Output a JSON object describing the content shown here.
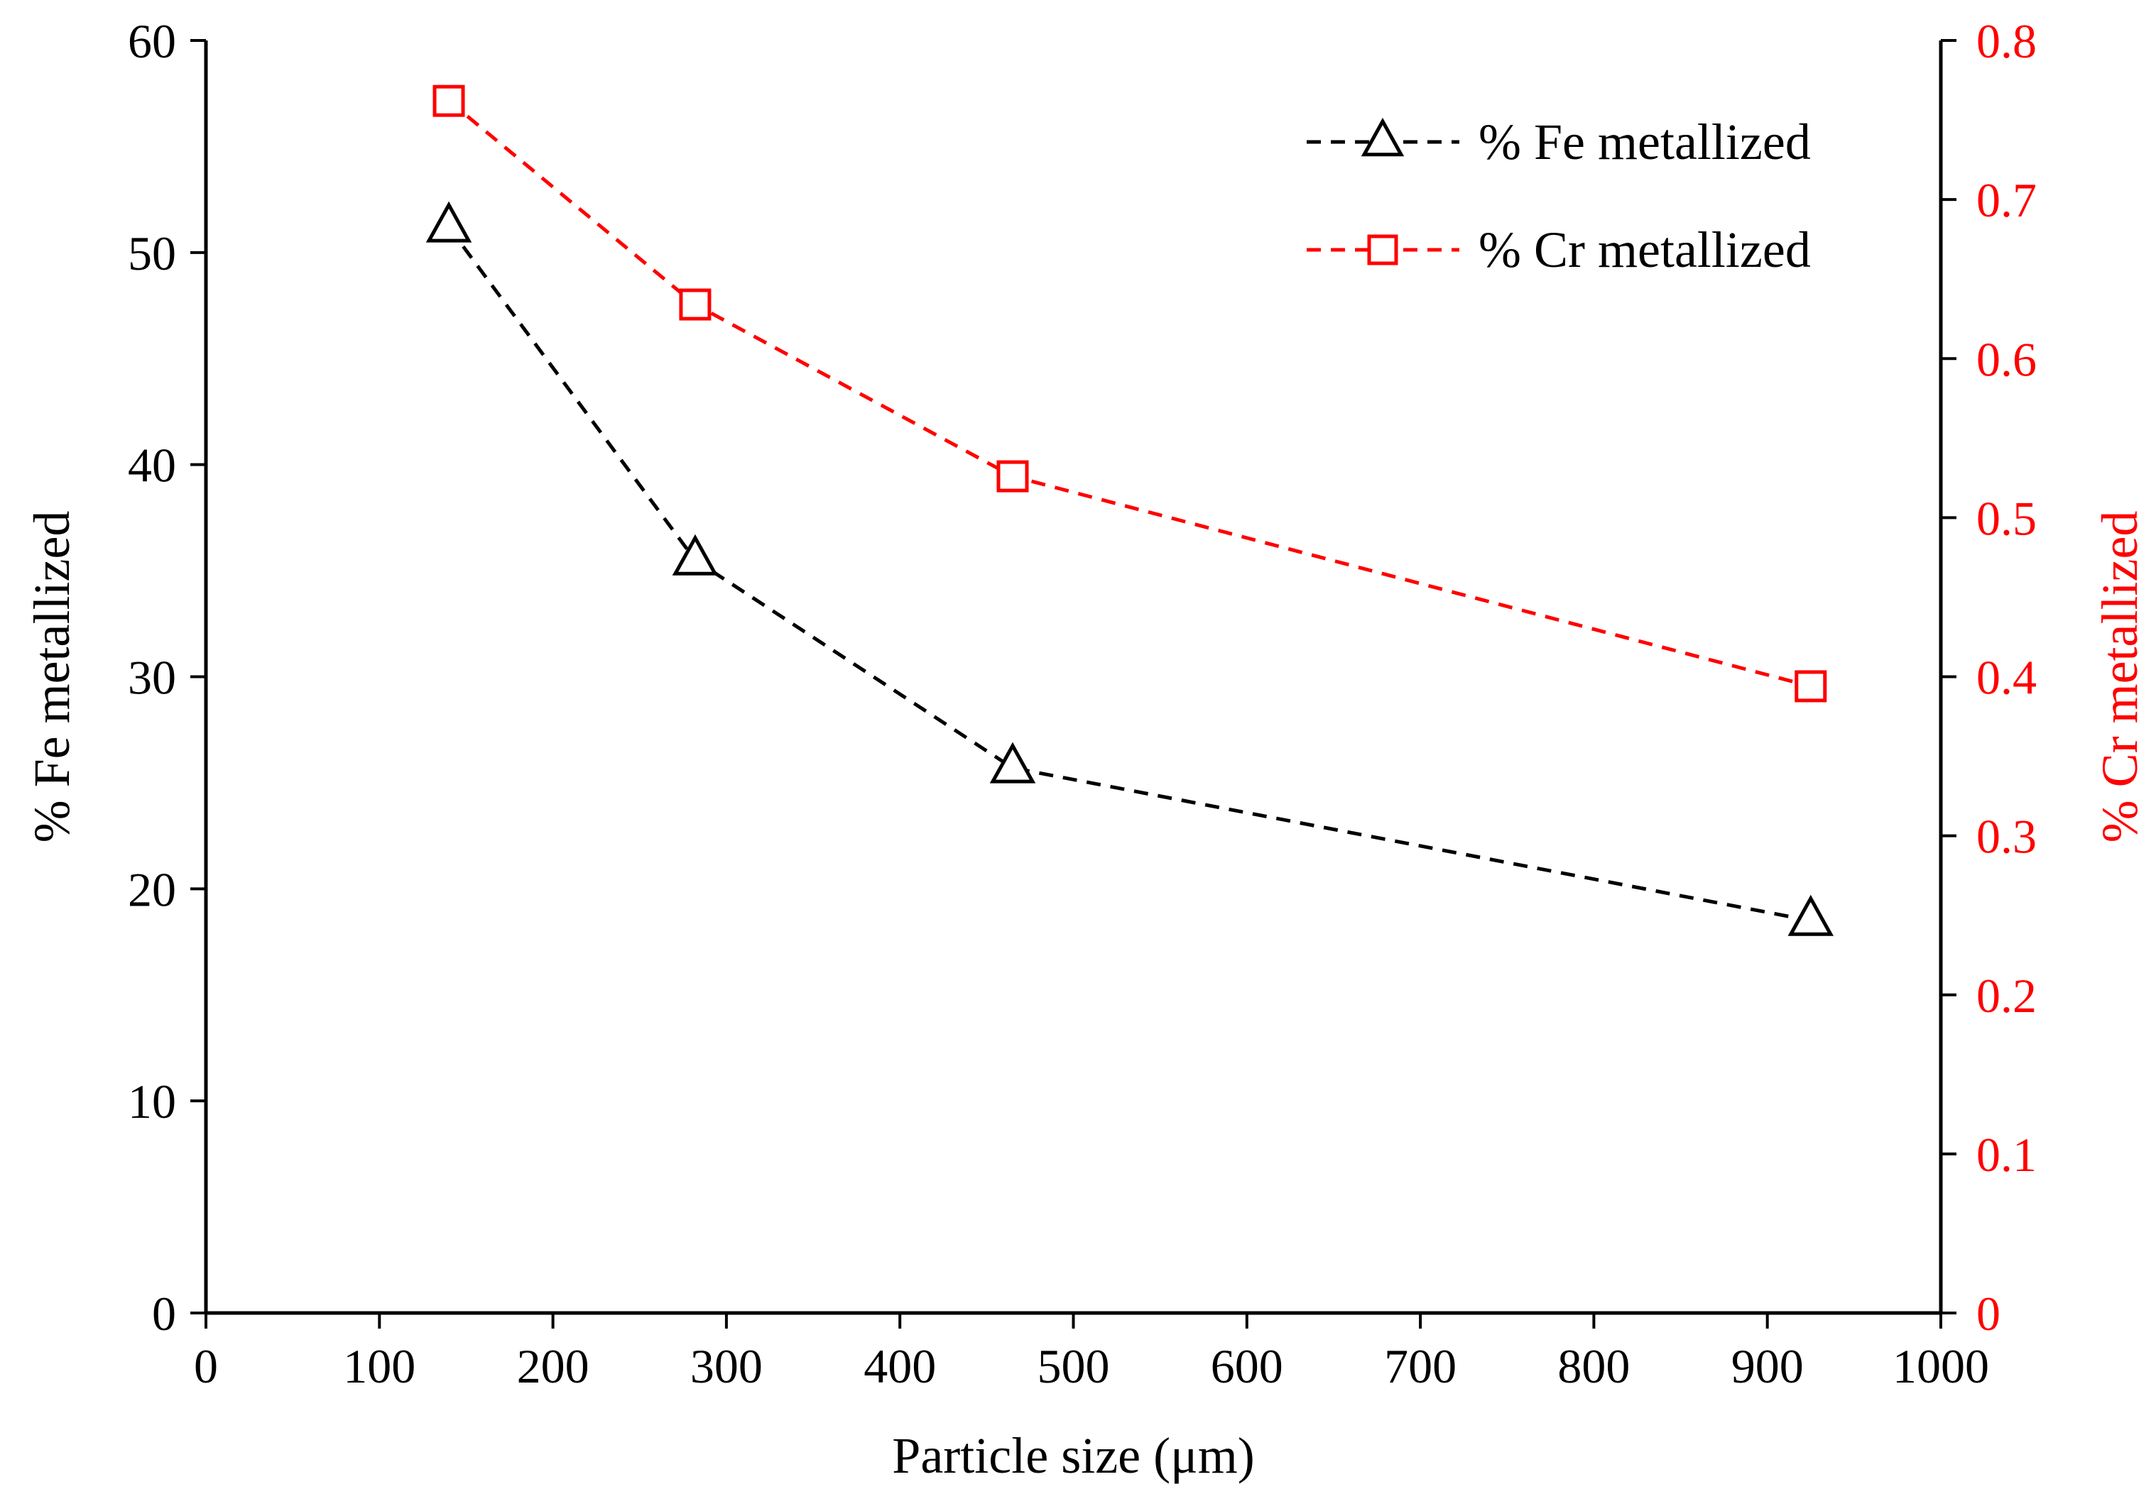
{
  "chart_data": {
    "type": "line",
    "title": "",
    "xlabel": "Particle size (μm)",
    "ylabel": "% Fe metallized",
    "y2label": "% Cr metallized",
    "xlim": [
      0,
      1000
    ],
    "ylim": [
      0,
      60
    ],
    "y2lim": [
      0,
      0.8
    ],
    "xticks": [
      "0",
      "100",
      "200",
      "300",
      "400",
      "500",
      "600",
      "700",
      "800",
      "900",
      "1000"
    ],
    "yticks": [
      "0",
      "10",
      "20",
      "30",
      "40",
      "50",
      "60"
    ],
    "y2ticks": [
      "0",
      "0.1",
      "0.2",
      "0.3",
      "0.4",
      "0.5",
      "0.6",
      "0.7",
      "0.8"
    ],
    "grid": false,
    "legend_position": "top-right",
    "series": [
      {
        "name": "% Fe metallized",
        "axis": "left",
        "color": "#000000",
        "marker": "triangle",
        "line_style": "dashed",
        "x": [
          140,
          282,
          465,
          925
        ],
        "values": [
          51.2,
          35.5,
          25.7,
          18.5
        ]
      },
      {
        "name": "% Cr metallized",
        "axis": "right",
        "color": "#ff0000",
        "marker": "square",
        "line_style": "dashed",
        "x": [
          140,
          282,
          465,
          925
        ],
        "values": [
          0.762,
          0.634,
          0.526,
          0.394
        ]
      }
    ]
  }
}
